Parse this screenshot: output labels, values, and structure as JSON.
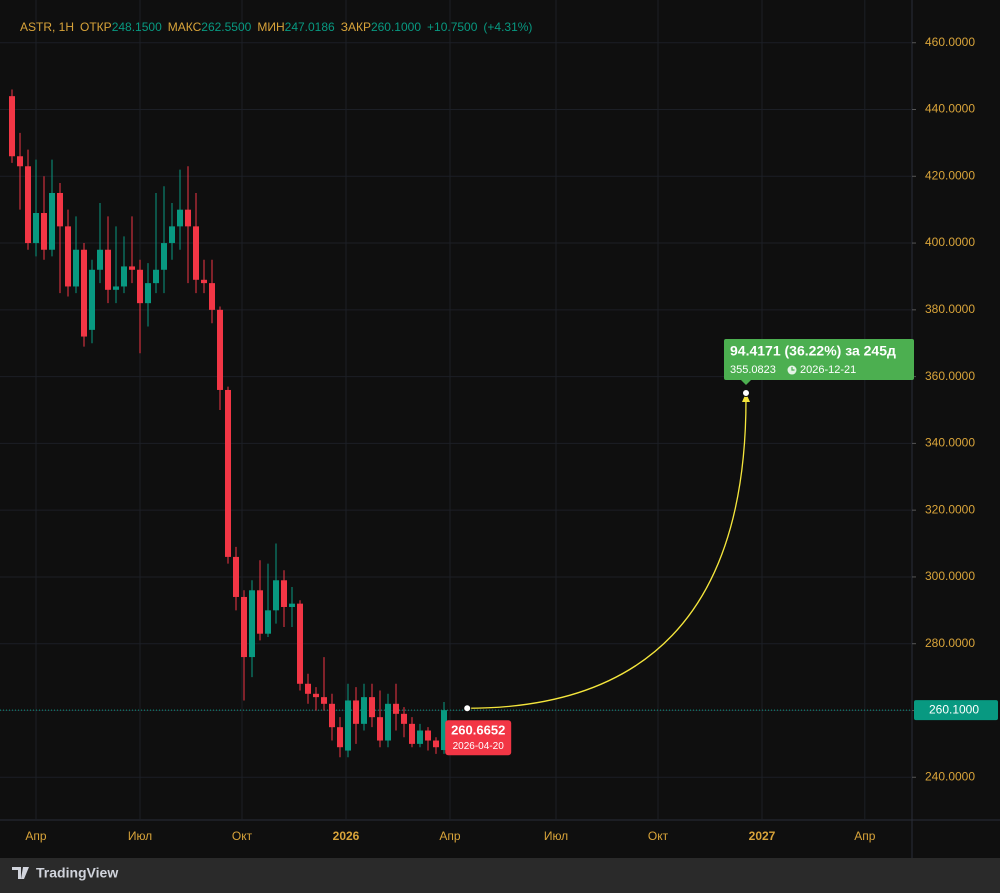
{
  "chart_data": {
    "type": "candlestick",
    "header": {
      "symbol": "ASTR, 1Н",
      "fields": [
        {
          "name": "ОТКР",
          "value": 248.15,
          "value_label": "248.1500"
        },
        {
          "name": "МАКС",
          "value": 262.55,
          "value_label": "262.5500"
        },
        {
          "name": "МИН",
          "value": 247.0186,
          "value_label": "247.0186"
        },
        {
          "name": "ЗАКР",
          "value": 260.1,
          "value_label": "260.1000"
        }
      ],
      "change": {
        "value": 10.75,
        "value_label": "+10.7500"
      },
      "change_pct": {
        "value": 4.31,
        "value_label": "(+4.31%)"
      }
    },
    "up_color": "#089981",
    "down_color": "#f23645",
    "open": [
      444,
      426,
      423,
      400,
      409,
      398,
      415,
      405,
      387,
      398,
      374,
      392,
      398,
      386,
      387,
      393,
      392,
      382,
      388,
      392,
      400,
      405,
      410,
      405,
      389,
      388,
      380,
      356,
      306,
      294,
      276,
      296,
      283,
      290,
      299,
      291,
      292,
      268,
      265,
      264,
      262,
      255,
      248,
      263,
      256,
      264,
      258,
      251,
      262,
      259,
      256,
      250,
      254,
      251,
      248.15
    ],
    "high": [
      446,
      433,
      428,
      425,
      420,
      425,
      418,
      410,
      408,
      400,
      395,
      412,
      408,
      405,
      402,
      408,
      395,
      394,
      415,
      417,
      412,
      422,
      423,
      415,
      395,
      395,
      381,
      357,
      309,
      296,
      299,
      305,
      304,
      310,
      302,
      297,
      293,
      271,
      267,
      276,
      265,
      258,
      268,
      267,
      268,
      268,
      266,
      265,
      268,
      261,
      258,
      256,
      255,
      252,
      262.55
    ],
    "low": [
      424,
      410,
      398,
      396,
      395,
      396,
      385,
      384,
      385,
      369,
      370,
      388,
      382,
      382,
      385,
      388,
      367,
      375,
      385,
      385,
      395,
      398,
      388,
      385,
      385,
      376,
      350,
      304,
      290,
      263,
      270,
      281,
      282,
      286,
      285,
      285,
      266,
      262,
      260,
      260,
      251,
      246,
      246,
      250,
      254,
      255,
      249,
      249,
      254,
      252,
      249,
      249,
      248,
      247,
      247.0186
    ],
    "close": [
      426,
      423,
      400,
      409,
      398,
      415,
      405,
      387,
      398,
      372,
      392,
      398,
      386,
      387,
      393,
      392,
      382,
      388,
      392,
      400,
      405,
      410,
      405,
      389,
      388,
      380,
      356,
      306,
      294,
      276,
      296,
      283,
      290,
      299,
      291,
      292,
      268,
      265,
      264,
      262,
      255,
      249,
      263,
      256,
      264,
      258,
      251,
      262,
      259,
      256,
      250,
      254,
      251,
      249,
      260.1
    ],
    "xlim": [
      -1.5,
      112.5
    ],
    "xticks": [
      {
        "value": 3,
        "label": "Апр"
      },
      {
        "value": 16,
        "label": "Июл"
      },
      {
        "value": 28.75,
        "label": "Окт"
      },
      {
        "value": 41.75,
        "label": "2026"
      },
      {
        "value": 54.75,
        "label": "Апр"
      },
      {
        "value": 68,
        "label": "Июл"
      },
      {
        "value": 80.75,
        "label": "Окт"
      },
      {
        "value": 93.75,
        "label": "2027"
      },
      {
        "value": 106.6,
        "label": "Апр"
      }
    ],
    "ylim": [
      227.2,
      472.8
    ],
    "yticks": [
      {
        "value": 240,
        "label": "240.0000"
      },
      {
        "value": 260,
        "label": "260.0000"
      },
      {
        "value": 280,
        "label": "280.0000"
      },
      {
        "value": 300,
        "label": "300.0000"
      },
      {
        "value": 320,
        "label": "320.0000"
      },
      {
        "value": 340,
        "label": "340.0000"
      },
      {
        "value": 360,
        "label": "360.0000"
      },
      {
        "value": 380,
        "label": "380.0000"
      },
      {
        "value": 400,
        "label": "400.0000"
      },
      {
        "value": 420,
        "label": "420.0000"
      },
      {
        "value": 440,
        "label": "440.0000"
      },
      {
        "value": 460,
        "label": "460.0000"
      }
    ],
    "last_price": {
      "value": 260.1,
      "label": "260.1000",
      "color": "#089981"
    },
    "projection": {
      "start": {
        "x": 56.9,
        "y": 260.6652,
        "label": "260.6652",
        "date": "2026-04-20"
      },
      "end": {
        "x": 91.75,
        "y": 355.0823,
        "label": "355.0823",
        "date": "2026-12-21"
      },
      "summary": "94.4171 (36.22%) за 245д",
      "color": "#f5e63c"
    },
    "branding": "TradingView"
  }
}
